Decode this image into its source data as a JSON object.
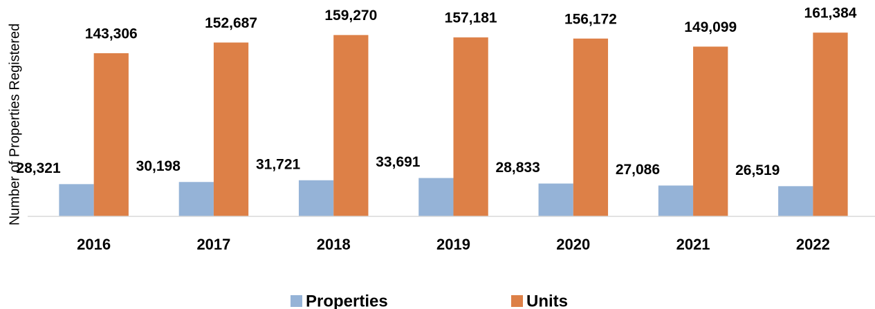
{
  "chart_data": {
    "type": "bar",
    "y_label": "Number of Properties Registered",
    "categories": [
      "2016",
      "2017",
      "2018",
      "2019",
      "2020",
      "2021",
      "2022"
    ],
    "series": [
      {
        "name": "Properties",
        "color": "#95b3d7",
        "values": [
          28321,
          30198,
          31721,
          33691,
          28833,
          27086,
          26519
        ],
        "value_labels": [
          "28,321",
          "30,198",
          "31,721",
          "33,691",
          "28,833",
          "27,086",
          "26,519"
        ]
      },
      {
        "name": "Units",
        "color": "#dd8047",
        "values": [
          143306,
          152687,
          159270,
          157181,
          156172,
          149099,
          161384
        ],
        "value_labels": [
          "143,306",
          "152,687",
          "159,270",
          "157,181",
          "156,172",
          "149,099",
          "161,384"
        ]
      }
    ],
    "ylim": [
      0,
      170000
    ],
    "legend": "bottom"
  }
}
